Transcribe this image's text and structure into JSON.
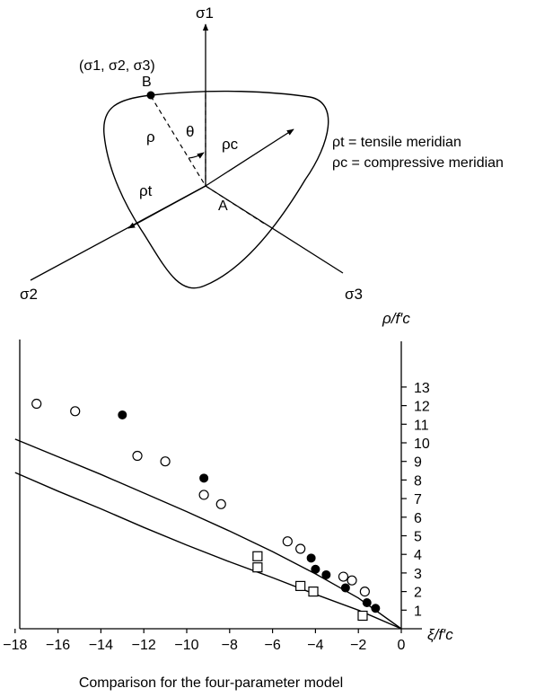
{
  "diagram": {
    "axis_sigma1": "σ1",
    "axis_sigma2": "σ2",
    "axis_sigma3": "σ3",
    "stress_point_label": "(σ1, σ2, σ3)",
    "point_B": "B",
    "point_A": "A",
    "rho": "ρ",
    "theta": "θ",
    "rho_c": "ρc",
    "rho_t": "ρt",
    "legend_tensile": "ρt = tensile meridian",
    "legend_compressive": "ρc = compressive meridian"
  },
  "chart_data": {
    "type": "scatter",
    "title": "",
    "caption": "Comparison for the four-parameter model",
    "xlabel": "ξ/f′c",
    "ylabel": "ρ/f′c",
    "xlim": [
      -18,
      0
    ],
    "ylim": [
      0,
      13.5
    ],
    "x_ticks": [
      -18,
      -16,
      -14,
      -12,
      -10,
      -8,
      -6,
      -4,
      -2,
      0
    ],
    "y_ticks": [
      1,
      2,
      3,
      4,
      5,
      6,
      7,
      8,
      9,
      10,
      11,
      12,
      13
    ],
    "grid": false,
    "series": [
      {
        "marker": "open-circle",
        "points": [
          [
            -17.0,
            12.1
          ],
          [
            -15.2,
            11.7
          ],
          [
            -12.3,
            9.3
          ],
          [
            -11.0,
            9.0
          ],
          [
            -9.2,
            7.2
          ],
          [
            -8.4,
            6.7
          ],
          [
            -5.3,
            4.7
          ],
          [
            -4.7,
            4.3
          ],
          [
            -2.7,
            2.8
          ],
          [
            -2.3,
            2.6
          ],
          [
            -1.7,
            2.0
          ]
        ]
      },
      {
        "marker": "filled-circle",
        "points": [
          [
            -13.0,
            11.5
          ],
          [
            -9.2,
            8.1
          ],
          [
            -4.2,
            3.8
          ],
          [
            -4.0,
            3.2
          ],
          [
            -3.5,
            2.9
          ],
          [
            -2.6,
            2.2
          ],
          [
            -1.6,
            1.4
          ],
          [
            -1.2,
            1.1
          ]
        ]
      },
      {
        "marker": "open-square",
        "points": [
          [
            -6.7,
            3.9
          ],
          [
            -6.7,
            3.3
          ],
          [
            -4.7,
            2.3
          ],
          [
            -4.1,
            2.0
          ],
          [
            -1.8,
            0.7
          ]
        ]
      },
      {
        "name": "compressive meridian",
        "type": "line",
        "points": [
          [
            -18,
            10.2
          ],
          [
            -16,
            9.25
          ],
          [
            -14,
            8.3
          ],
          [
            -12,
            7.3
          ],
          [
            -10,
            6.3
          ],
          [
            -8,
            5.25
          ],
          [
            -6,
            4.15
          ],
          [
            -4,
            2.95
          ],
          [
            -2,
            1.65
          ],
          [
            0,
            0
          ]
        ]
      },
      {
        "name": "tensile meridian",
        "type": "line",
        "points": [
          [
            -18,
            8.4
          ],
          [
            -16,
            7.4
          ],
          [
            -14,
            6.45
          ],
          [
            -12,
            5.45
          ],
          [
            -10,
            4.5
          ],
          [
            -8,
            3.6
          ],
          [
            -6,
            2.75
          ],
          [
            -4,
            1.85
          ],
          [
            -2,
            1.0
          ],
          [
            0,
            0
          ]
        ]
      }
    ]
  }
}
